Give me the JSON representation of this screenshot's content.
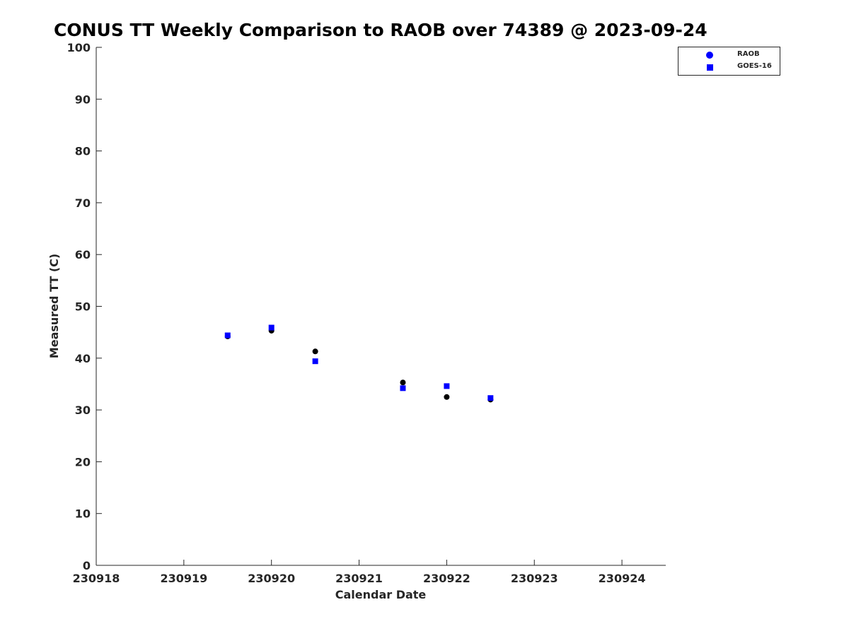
{
  "chart_data": {
    "type": "scatter",
    "title": "CONUS TT Weekly Comparison to RAOB over 74389 @ 2023-09-24",
    "xlabel": "Calendar Date",
    "ylabel": "Measured TT (C)",
    "xlim": [
      230918,
      230924.5
    ],
    "ylim": [
      0,
      100
    ],
    "xticks": [
      230918,
      230919,
      230920,
      230921,
      230922,
      230923,
      230924
    ],
    "xtick_labels": [
      "230918",
      "230919",
      "230920",
      "230921",
      "230922",
      "230923",
      "230924"
    ],
    "yticks": [
      0,
      10,
      20,
      30,
      40,
      50,
      60,
      70,
      80,
      90,
      100
    ],
    "ytick_labels": [
      "0",
      "10",
      "20",
      "30",
      "40",
      "50",
      "60",
      "70",
      "80",
      "90",
      "100"
    ],
    "grid": false,
    "legend_position": "top-right",
    "series": [
      {
        "name": "RAOB",
        "marker": "circle",
        "color": "#000000",
        "legend_color": "#0000ff",
        "x": [
          230919.5,
          230920.0,
          230920.5,
          230921.5,
          230922.0,
          230922.5
        ],
        "y": [
          44.2,
          45.3,
          41.3,
          35.3,
          32.5,
          32.0
        ]
      },
      {
        "name": "GOES-16",
        "marker": "square",
        "color": "#0000ff",
        "legend_color": "#0000ff",
        "x": [
          230919.5,
          230920.0,
          230920.5,
          230921.5,
          230922.0,
          230922.5
        ],
        "y": [
          44.4,
          45.9,
          39.4,
          34.2,
          34.6,
          32.3
        ]
      }
    ]
  }
}
